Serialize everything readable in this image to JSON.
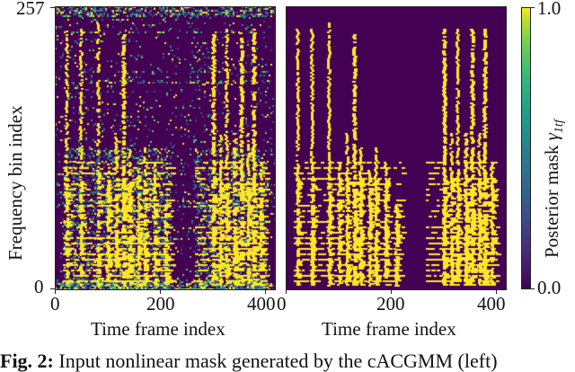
{
  "figure": {
    "caption_label": "Fig. 2:",
    "caption_text": "Input nonlinear mask generated by the cACGMM (left)",
    "caption_visible_fragment": "Fig. 2: I... ... ...ated by the cACGMM (left)"
  },
  "chart_data": [
    {
      "type": "heatmap",
      "title": "",
      "xlabel": "Time frame index",
      "ylabel": "Frequency bin index",
      "x_ticks": [
        "0",
        "200",
        "400"
      ],
      "y_ticks": [
        "0",
        "257"
      ],
      "xlim": [
        0,
        420
      ],
      "ylim": [
        0,
        257
      ],
      "colormap": "viridis",
      "description": "Noisy soft mask: vertical yellow streaks (speech onsets) around frames ~10-190 and ~230-380, dense at low frequencies, with speckled teal/green noise throughout and horizontal banding near the top.",
      "speech_regions_frames": [
        [
          10,
          190
        ],
        [
          230,
          385
        ]
      ]
    },
    {
      "type": "heatmap",
      "title": "",
      "xlabel": "Time frame index",
      "ylabel": "",
      "x_ticks": [
        "200",
        "400"
      ],
      "x_ticks_hidden_zero": "0",
      "y_ticks": [],
      "xlim": [
        0,
        420
      ],
      "ylim": [
        0,
        257
      ],
      "colormap": "viridis",
      "description": "Binary-looking posterior mask: clean yellow vertical streaks on dark purple background, same speech regions as left panel.",
      "speech_regions_frames": [
        [
          10,
          190
        ],
        [
          230,
          385
        ]
      ]
    },
    {
      "type": "colorbar",
      "label": "Posterior mask γ1tf",
      "label_main": "Posterior mask ",
      "label_symbol": "γ",
      "label_subscript": "1tf",
      "ticks": [
        "0.0",
        "1.0"
      ],
      "range": [
        0.0,
        1.0
      ],
      "colormap": "viridis"
    }
  ],
  "colors": {
    "low": "#440154",
    "mid": "#21918c",
    "high": "#fde725",
    "axis": "#222222"
  },
  "axes": {
    "left": {
      "ytick_top": "257",
      "ytick_bottom": "0",
      "xtick_0": "0",
      "xtick_200": "200",
      "xtick_400": "400",
      "xlabel": "Time frame index",
      "ylabel": "Frequency bin index"
    },
    "right": {
      "xtick_0": "0",
      "xtick_200": "200",
      "xtick_400": "400",
      "xlabel": "Time frame index"
    },
    "colorbar": {
      "tick_top": "1.0",
      "tick_bottom": "0.0",
      "label_main": "Posterior mask ",
      "label_symbol": "γ",
      "label_sub": "1tf"
    }
  }
}
